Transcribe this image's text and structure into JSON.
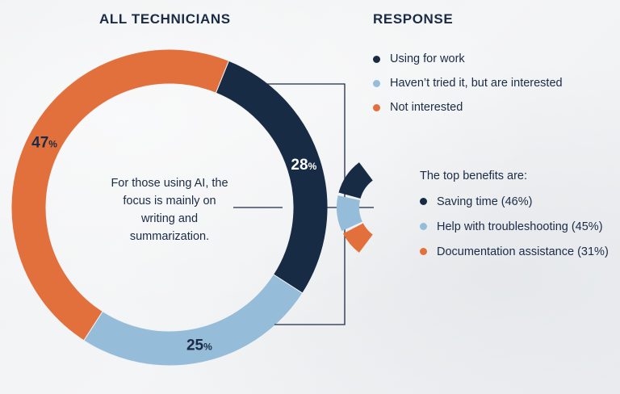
{
  "left_title": "ALL TECHNICIANS",
  "right_title": "RESPONSE",
  "center_text": "For those using AI, the focus is mainly on writing and summarization.",
  "legend": [
    {
      "label": "Using for work",
      "color": "#182b45"
    },
    {
      "label": "Haven’t tried it, but are interested",
      "color": "#95bcd8"
    },
    {
      "label": "Not interested",
      "color": "#e2703c"
    }
  ],
  "benefits_heading": "The top benefits are:",
  "chart_data": [
    {
      "type": "pie",
      "title": "ALL TECHNICIANS",
      "categories": [
        "Using for work",
        "Haven’t tried it, but are interested",
        "Not interested"
      ],
      "values": [
        28,
        25,
        47
      ],
      "unit": "%",
      "colors": [
        "#182b45",
        "#95bcd8",
        "#e2703c"
      ],
      "labels": [
        {
          "number": "28",
          "symbol": "%"
        },
        {
          "number": "25",
          "symbol": "%"
        },
        {
          "number": "47",
          "symbol": "%"
        }
      ]
    },
    {
      "type": "bar",
      "title": "The top benefits are:",
      "categories": [
        "Saving time",
        "Help with troubleshooting",
        "Documentation assistance"
      ],
      "values": [
        46,
        45,
        31
      ],
      "unit": "%",
      "colors": [
        "#182b45",
        "#95bcd8",
        "#e2703c"
      ],
      "labels": [
        "Saving time (46%)",
        "Help with troubleshooting (45%)",
        "Documentation assistance (31%)"
      ]
    }
  ]
}
